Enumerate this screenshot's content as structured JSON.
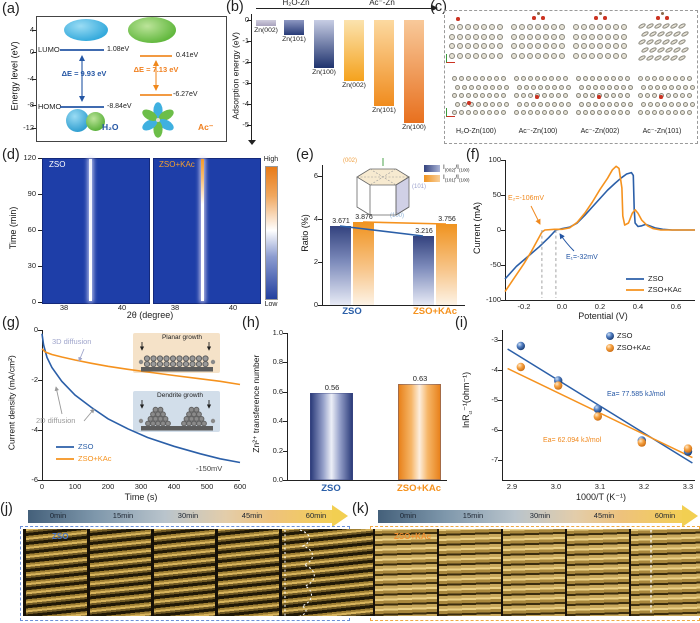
{
  "colors": {
    "blue": "#2b5fa8",
    "orange": "#f5921e",
    "heatmap_blue": "#1e3ea8"
  },
  "panels": {
    "a": {
      "label": "(a)",
      "ylabel": "Energy level (eV)",
      "yticks": [
        "4",
        "0",
        "-4",
        "-8",
        "-12"
      ],
      "lumo": "LUMO",
      "homo": "HOMO",
      "h2o_lumo": "1.08eV",
      "h2o_homo": "-8.84eV",
      "ac_lumo": "0.41eV",
      "ac_homo": "-6.27eV",
      "de_h2o": "ΔE = 9.93 eV",
      "de_ac": "ΔE = 7.13 eV",
      "mol_h2o": "H₂O",
      "mol_ac": "Ac⁻"
    },
    "b": {
      "label": "(b)",
      "ylabel": "Adsorption energy (eV)",
      "yticks": [
        "0",
        "-1",
        "-2",
        "-3",
        "-4",
        "-5"
      ],
      "arrow_left": "H₂O-Zn",
      "arrow_right": "Ac⁻-Zn"
    },
    "c": {
      "label": "(c)",
      "captions": [
        "H₂O-Zn(100)",
        "Ac⁻-Zn(100)",
        "Ac⁻-Zn(002)",
        "Ac⁻-Zn(101)"
      ]
    },
    "d": {
      "label": "(d)",
      "ylabel": "Time (min)",
      "xlabel": "2θ (degree)",
      "yticks": [
        "0",
        "30",
        "60",
        "90",
        "120"
      ],
      "xticks": [
        "38",
        "40"
      ],
      "left_title": "ZSO",
      "right_title": "ZSO+KAc",
      "colorbar_high": "High",
      "colorbar_low": "Low"
    },
    "e": {
      "label": "(e)",
      "ylabel": "Ratio (%)",
      "yticks": [
        "0",
        "2",
        "4",
        "6"
      ],
      "xcats": [
        "ZSO",
        "ZSO+KAc"
      ],
      "legend": [
        {
          "pre": "I",
          "sub1": "(002)",
          "mid": "/I",
          "sub2": "(100)"
        },
        {
          "pre": "I",
          "sub1": "(101)",
          "mid": "/I",
          "sub2": "(100)"
        }
      ],
      "crystal": {
        "f002": "(002)",
        "f101": "(101)",
        "f100": "(100)"
      }
    },
    "f": {
      "label": "(f)",
      "ylabel": "Current (mA)",
      "xlabel": "Potential (V)",
      "yticks": [
        "100",
        "50",
        "0",
        "-50",
        "-100"
      ],
      "xticks": [
        "-0.2",
        "0.0",
        "0.2",
        "0.4",
        "0.6"
      ],
      "ann_orange": "E₂=-106mV",
      "ann_blue": "E₁=-32mV",
      "legend": [
        "ZSO",
        "ZSO+KAc"
      ]
    },
    "g": {
      "label": "(g)",
      "ylabel": "Current density (mA/cm²)",
      "xlabel": "Time (s)",
      "yticks": [
        "0",
        "-2",
        "-4",
        "-6"
      ],
      "xticks": [
        "0",
        "100",
        "200",
        "300",
        "400",
        "500",
        "600"
      ],
      "ann_3d": "3D diffusion",
      "ann_2d": "2D diffusion",
      "volt": "-150mV",
      "legend": [
        "ZSO",
        "ZSO+KAc"
      ],
      "inset_top": "Planar growth",
      "inset_bottom": "Dendrite growth"
    },
    "h": {
      "label": "(h)",
      "ylabel": "Zn²⁺ transference number",
      "yticks": [
        "0.0",
        "0.2",
        "0.4",
        "0.6",
        "0.8",
        "1.0"
      ],
      "xcats": [
        "ZSO",
        "ZSO+KAc"
      ]
    },
    "i": {
      "label": "(i)",
      "ylabel_pre": "lnR",
      "ylabel_sub": "ct",
      "ylabel_post": "⁻¹(ohm⁻¹)",
      "xlabel": "1000/T (K⁻¹)",
      "yticks": [
        "-3",
        "-4",
        "-5",
        "-6",
        "-7"
      ],
      "xticks": [
        "2.9",
        "3.0",
        "3.1",
        "3.2",
        "3.3"
      ],
      "ea_blue": "Ea= 77.585 kJ/mol",
      "ea_orange": "Ea= 62.094 kJ/mol",
      "legend": [
        "ZSO",
        "ZSO+KAc"
      ]
    },
    "j": {
      "label": "(j)",
      "times": [
        "0min",
        "15min",
        "30min",
        "45min",
        "60min"
      ],
      "tag": "ZSO"
    },
    "k": {
      "label": "(k)",
      "times": [
        "0min",
        "15min",
        "30min",
        "45min",
        "60min"
      ],
      "tag": "ZSO+KAc"
    }
  },
  "chart_data": [
    {
      "panel": "b",
      "type": "bar",
      "ylabel": "Adsorption energy (eV)",
      "ylim": [
        0,
        -5
      ],
      "categories": [
        "Zn(002)",
        "Zn(101)",
        "Zn(100)",
        "Zn(002)",
        "Zn(101)",
        "Zn(100)"
      ],
      "groups": [
        "H₂O-Zn",
        "H₂O-Zn",
        "H₂O-Zn",
        "Ac⁻-Zn",
        "Ac⁻-Zn",
        "Ac⁻-Zn"
      ],
      "values": [
        -0.3,
        -0.7,
        -2.3,
        -2.9,
        -4.1,
        -4.9
      ]
    },
    {
      "panel": "d",
      "type": "heatmap",
      "xlabel": "2θ (degree)",
      "ylabel": "Time (min)",
      "xticks": [
        38,
        40
      ],
      "yticks": [
        0,
        30,
        60,
        90,
        120
      ],
      "series": [
        "ZSO",
        "ZSO+KAc"
      ],
      "peak_2theta": 38.9,
      "time_range_min": [
        0,
        120
      ],
      "colorbar": {
        "high": "High",
        "low": "Low"
      }
    },
    {
      "panel": "e",
      "type": "bar",
      "ylabel": "Ratio (%)",
      "ylim": [
        0,
        7
      ],
      "yticks": [
        0,
        2,
        4,
        6
      ],
      "categories": [
        "ZSO",
        "ZSO+KAc"
      ],
      "series": [
        {
          "name": "I(002)/I(100)",
          "values": [
            3.671,
            3.216
          ]
        },
        {
          "name": "I(101)/I(100)",
          "values": [
            3.876,
            3.756
          ]
        }
      ]
    },
    {
      "panel": "f",
      "type": "line",
      "xlabel": "Potential (V)",
      "ylabel": "Current (mA)",
      "xlim": [
        -0.3,
        0.7
      ],
      "ylim": [
        -100,
        100
      ],
      "dashed_x": [
        -0.106,
        -0.032
      ],
      "series": [
        {
          "name": "ZSO",
          "color": "blue",
          "points": [
            [
              -0.3,
              -70
            ],
            [
              -0.24,
              -52
            ],
            [
              -0.18,
              -38
            ],
            [
              -0.12,
              -24
            ],
            [
              -0.07,
              -11
            ],
            [
              -0.032,
              0
            ],
            [
              0.0,
              2
            ],
            [
              0.04,
              4
            ],
            [
              0.08,
              10
            ],
            [
              0.12,
              21
            ],
            [
              0.16,
              33
            ],
            [
              0.2,
              45
            ],
            [
              0.24,
              57
            ],
            [
              0.28,
              67
            ],
            [
              0.31,
              74
            ],
            [
              0.34,
              80
            ],
            [
              0.365,
              82
            ],
            [
              0.375,
              78
            ],
            [
              0.38,
              30
            ],
            [
              0.385,
              10
            ],
            [
              0.4,
              5
            ],
            [
              0.42,
              6
            ],
            [
              0.44,
              8
            ],
            [
              0.46,
              6
            ],
            [
              0.49,
              3
            ],
            [
              0.53,
              1
            ],
            [
              0.58,
              0
            ],
            [
              0.7,
              0
            ]
          ]
        },
        {
          "name": "ZSO+KAc",
          "color": "orange",
          "points": [
            [
              -0.3,
              -88
            ],
            [
              -0.25,
              -68
            ],
            [
              -0.2,
              -48
            ],
            [
              -0.16,
              -30
            ],
            [
              -0.13,
              -15
            ],
            [
              -0.106,
              -3
            ],
            [
              -0.09,
              0
            ],
            [
              -0.04,
              1
            ],
            [
              0.0,
              1
            ],
            [
              0.04,
              3
            ],
            [
              0.08,
              11
            ],
            [
              0.12,
              24
            ],
            [
              0.16,
              40
            ],
            [
              0.2,
              58
            ],
            [
              0.24,
              74
            ],
            [
              0.265,
              86
            ],
            [
              0.285,
              91
            ],
            [
              0.3,
              88
            ],
            [
              0.315,
              60
            ],
            [
              0.32,
              20
            ],
            [
              0.33,
              7
            ],
            [
              0.35,
              10
            ],
            [
              0.37,
              24
            ],
            [
              0.385,
              29
            ],
            [
              0.4,
              24
            ],
            [
              0.42,
              14
            ],
            [
              0.45,
              6
            ],
            [
              0.48,
              2
            ],
            [
              0.52,
              0
            ],
            [
              0.7,
              0
            ]
          ]
        }
      ]
    },
    {
      "panel": "g",
      "type": "line",
      "xlabel": "Time (s)",
      "ylabel": "Current density (mA/cm²)",
      "xlim": [
        0,
        600
      ],
      "ylim": [
        -6,
        0
      ],
      "series": [
        {
          "name": "ZSO",
          "color": "blue",
          "points": [
            [
              0,
              -0.15
            ],
            [
              5,
              -0.6
            ],
            [
              15,
              -1.1
            ],
            [
              30,
              -1.5
            ],
            [
              60,
              -2.05
            ],
            [
              100,
              -2.6
            ],
            [
              150,
              -3.1
            ],
            [
              200,
              -3.55
            ],
            [
              260,
              -3.95
            ],
            [
              320,
              -4.3
            ],
            [
              400,
              -4.65
            ],
            [
              480,
              -4.95
            ],
            [
              540,
              -5.15
            ],
            [
              600,
              -5.3
            ]
          ]
        },
        {
          "name": "ZSO+KAc",
          "color": "orange",
          "points": [
            [
              0,
              -0.75
            ],
            [
              10,
              -0.88
            ],
            [
              30,
              -0.98
            ],
            [
              60,
              -1.08
            ],
            [
              100,
              -1.2
            ],
            [
              150,
              -1.33
            ],
            [
              200,
              -1.45
            ],
            [
              260,
              -1.57
            ],
            [
              320,
              -1.68
            ],
            [
              400,
              -1.82
            ],
            [
              480,
              -1.95
            ],
            [
              540,
              -2.05
            ],
            [
              600,
              -2.18
            ]
          ]
        }
      ]
    },
    {
      "panel": "h",
      "type": "bar",
      "ylabel": "Zn²⁺ transference number",
      "ylim": [
        0,
        1
      ],
      "categories": [
        "ZSO",
        "ZSO+KAc"
      ],
      "values": [
        0.56,
        0.63
      ],
      "bar_visual": [
        0.59,
        0.655
      ]
    },
    {
      "panel": "i",
      "type": "scatter",
      "xlabel": "1000/T (K⁻¹)",
      "ylabel": "lnRct⁻¹(ohm⁻¹)",
      "xlim": [
        2.87,
        3.34
      ],
      "ylim": [
        -7.6,
        -2.6
      ],
      "series": [
        {
          "name": "ZSO",
          "color": "blue",
          "ea": "Ea= 77.585 kJ/mol",
          "points": [
            [
              2.92,
              -3.2
            ],
            [
              3.005,
              -4.35
            ],
            [
              3.095,
              -5.3
            ],
            [
              3.195,
              -6.35
            ],
            [
              3.3,
              -6.72
            ]
          ],
          "fit": [
            [
              2.89,
              -3.3
            ],
            [
              3.31,
              -7.1
            ]
          ]
        },
        {
          "name": "ZSO+KAc",
          "color": "orange",
          "ea": "Ea= 62.094 kJ/mol",
          "points": [
            [
              2.92,
              -3.9
            ],
            [
              3.005,
              -4.52
            ],
            [
              3.095,
              -5.55
            ],
            [
              3.195,
              -6.42
            ],
            [
              3.3,
              -6.62
            ]
          ],
          "fit": [
            [
              2.89,
              -3.95
            ],
            [
              3.31,
              -6.92
            ]
          ]
        }
      ]
    }
  ]
}
